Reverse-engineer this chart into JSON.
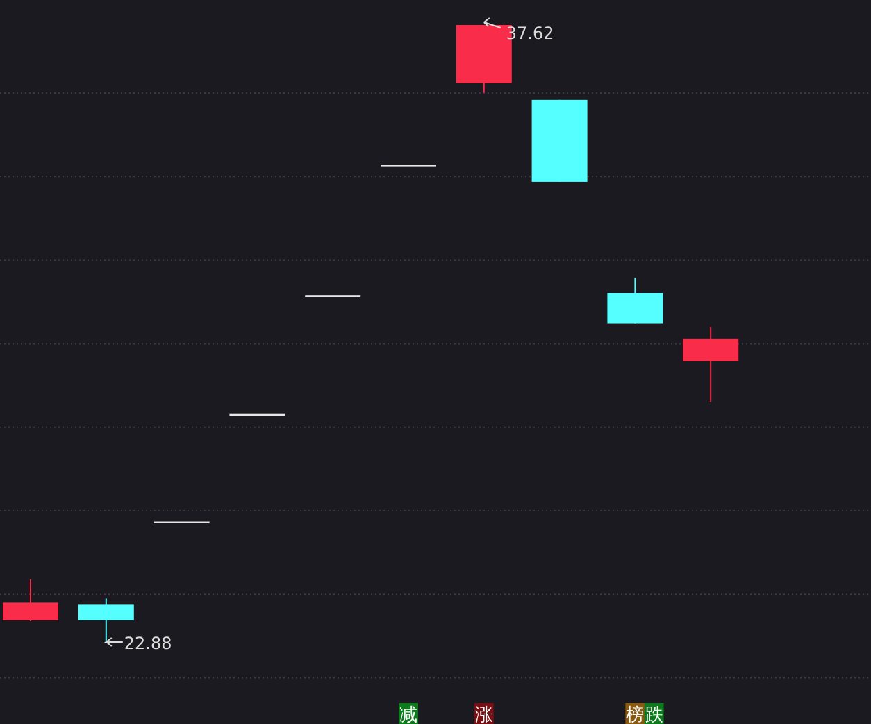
{
  "chart_data": {
    "type": "candlestick",
    "categories": [
      null,
      null,
      null,
      null,
      null,
      null,
      null,
      null,
      null,
      null
    ],
    "ohlc": [
      [
        23.4,
        24.38,
        23.38,
        23.82
      ],
      [
        23.77,
        23.92,
        22.88,
        23.4
      ],
      [
        25.74,
        25.74,
        25.74,
        25.74
      ],
      [
        28.31,
        28.31,
        28.31,
        28.31
      ],
      [
        31.14,
        31.14,
        31.14,
        31.14
      ],
      [
        34.26,
        34.26,
        34.26,
        34.26
      ],
      [
        36.23,
        37.62,
        36.0,
        37.62
      ],
      [
        35.83,
        35.83,
        33.87,
        33.87
      ],
      [
        31.22,
        31.58,
        30.49,
        30.49
      ],
      [
        29.59,
        30.41,
        28.62,
        30.12
      ]
    ],
    "colors": [
      "#f92d4a",
      "#55ffff",
      "#e6e6e6",
      "#e6e6e6",
      "#e6e6e6",
      "#e6e6e6",
      "#f92d4a",
      "#55ffff",
      "#55ffff",
      "#f92d4a"
    ],
    "grid": "y",
    "annotations": [
      "37.62",
      "22.88",
      "减",
      "涨",
      "榜",
      "跌"
    ]
  }
}
